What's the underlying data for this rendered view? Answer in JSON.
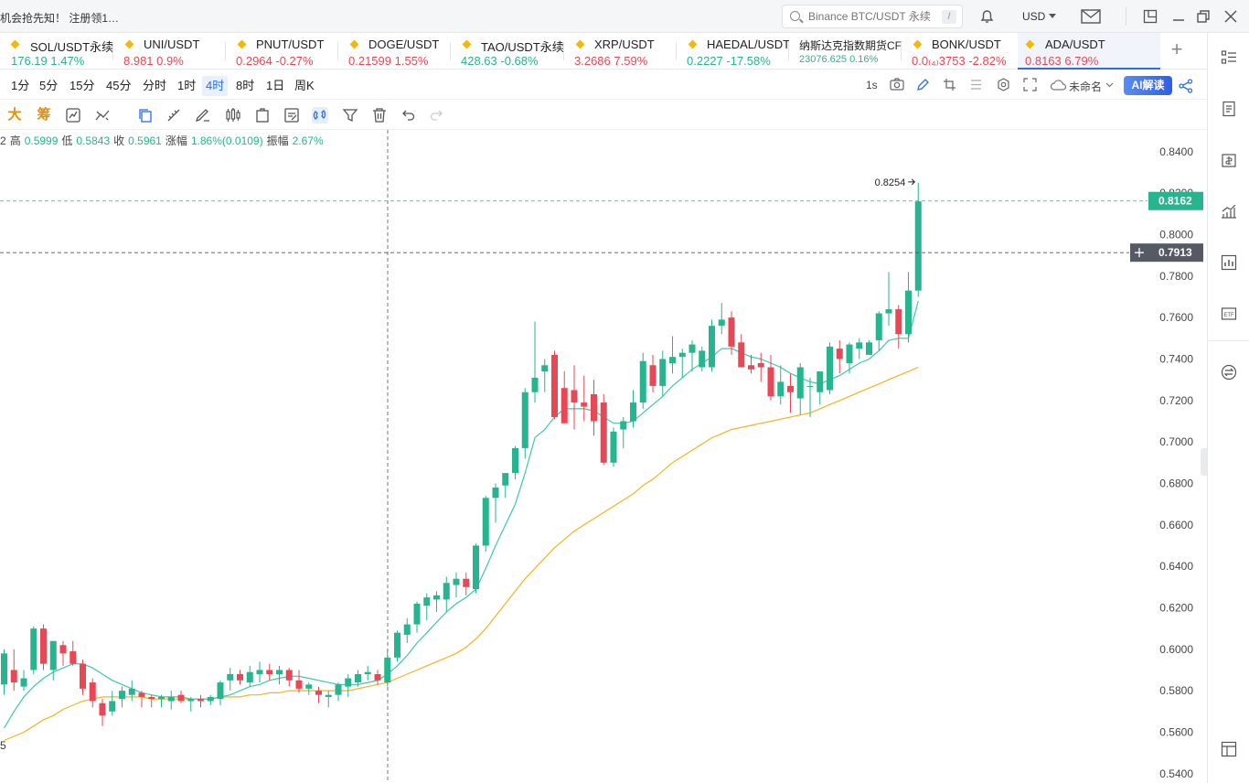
{
  "topbar": {
    "promo": "机会抢先知！ 注册领1…",
    "search_placeholder": "Binance BTC/USDT 永续",
    "search_shortcut": "/",
    "currency": "USD"
  },
  "tickers": [
    {
      "name": "SOL/USDT永续",
      "price": "176.19",
      "change": "1.47%",
      "trend": "up"
    },
    {
      "name": "UNI/USDT",
      "price": "8.981",
      "change": "0.9%",
      "trend": "down"
    },
    {
      "name": "PNUT/USDT",
      "price": "0.2964",
      "change": "-0.27%",
      "trend": "down"
    },
    {
      "name": "DOGE/USDT",
      "price": "0.21599",
      "change": "1.55%",
      "trend": "down"
    },
    {
      "name": "TAO/USDT永续",
      "price": "428.63",
      "change": "-0.68%",
      "trend": "up"
    },
    {
      "name": "XRP/USDT",
      "price": "3.2686",
      "change": "7.59%",
      "trend": "down"
    },
    {
      "name": "HAEDAL/USDT",
      "price": "0.2227",
      "change": "-17.58%",
      "trend": "up"
    },
    {
      "name": "纳斯达克指数期货CFD",
      "price": "23076.625",
      "change": "0.16%",
      "trend": "up"
    },
    {
      "name": "BONK/USDT",
      "price": "0.0₍₄₎3753",
      "change": "-2.82%",
      "trend": "down"
    },
    {
      "name": "ADA/USDT",
      "price": "0.8163",
      "change": "6.79%",
      "trend": "down"
    }
  ],
  "intervals": [
    "1分",
    "5分",
    "15分",
    "45分",
    "分时",
    "1时",
    "4时",
    "8时",
    "1日",
    "周K"
  ],
  "selected_interval": "4时",
  "interval_right": {
    "refresh": "1s",
    "layout_name": "未命名",
    "ai_label": "AI解读"
  },
  "tools": {
    "big": "大",
    "chip": "筹"
  },
  "ohlc": {
    "open_suffix": "2",
    "high_label": "高",
    "high": "0.5999",
    "low_label": "低",
    "low": "0.5843",
    "close_label": "收",
    "close": "0.5961",
    "change_label": "涨幅",
    "change": "1.86%(0.0109)",
    "amp_label": "振幅",
    "amp": "2.67%"
  },
  "bottom_left_label": "5",
  "chart_data": {
    "type": "candlestick",
    "y_ticks": [
      "0.8400",
      "0.8200",
      "0.8000",
      "0.7800",
      "0.7600",
      "0.7400",
      "0.7200",
      "0.7000",
      "0.6800",
      "0.6600",
      "0.6400",
      "0.6200",
      "0.6000",
      "0.5800",
      "0.5600",
      "0.5400"
    ],
    "ylim": [
      0.5355,
      0.8505
    ],
    "last_price": "0.8162",
    "crosshair_price": "0.7913",
    "high_marker": "0.8254",
    "candles": [
      [
        0.583,
        0.6,
        0.578,
        0.598
      ],
      [
        0.59,
        0.6,
        0.58,
        0.584
      ],
      [
        0.582,
        0.59,
        0.58,
        0.586
      ],
      [
        0.59,
        0.611,
        0.588,
        0.61
      ],
      [
        0.61,
        0.612,
        0.59,
        0.593
      ],
      [
        0.59,
        0.603,
        0.585,
        0.604
      ],
      [
        0.602,
        0.604,
        0.592,
        0.598
      ],
      [
        0.599,
        0.604,
        0.592,
        0.593
      ],
      [
        0.593,
        0.595,
        0.578,
        0.581
      ],
      [
        0.584,
        0.586,
        0.572,
        0.575
      ],
      [
        0.574,
        0.576,
        0.563,
        0.568
      ],
      [
        0.57,
        0.58,
        0.568,
        0.575
      ],
      [
        0.576,
        0.582,
        0.572,
        0.58
      ],
      [
        0.578,
        0.585,
        0.575,
        0.581
      ],
      [
        0.579,
        0.58,
        0.572,
        0.577
      ],
      [
        0.577,
        0.578,
        0.572,
        0.576
      ],
      [
        0.576,
        0.578,
        0.572,
        0.577
      ],
      [
        0.575,
        0.58,
        0.571,
        0.577
      ],
      [
        0.578,
        0.58,
        0.574,
        0.575
      ],
      [
        0.575,
        0.577,
        0.57,
        0.576
      ],
      [
        0.576,
        0.578,
        0.572,
        0.575
      ],
      [
        0.575,
        0.578,
        0.573,
        0.577
      ],
      [
        0.576,
        0.585,
        0.573,
        0.584
      ],
      [
        0.585,
        0.591,
        0.58,
        0.588
      ],
      [
        0.588,
        0.59,
        0.583,
        0.585
      ],
      [
        0.584,
        0.592,
        0.582,
        0.589
      ],
      [
        0.588,
        0.594,
        0.584,
        0.59
      ],
      [
        0.59,
        0.593,
        0.585,
        0.588
      ],
      [
        0.588,
        0.592,
        0.583,
        0.59
      ],
      [
        0.59,
        0.591,
        0.582,
        0.585
      ],
      [
        0.585,
        0.59,
        0.579,
        0.581
      ],
      [
        0.581,
        0.584,
        0.578,
        0.583
      ],
      [
        0.58,
        0.582,
        0.574,
        0.578
      ],
      [
        0.577,
        0.58,
        0.572,
        0.578
      ],
      [
        0.578,
        0.584,
        0.575,
        0.583
      ],
      [
        0.582,
        0.588,
        0.577,
        0.586
      ],
      [
        0.584,
        0.59,
        0.582,
        0.588
      ],
      [
        0.588,
        0.592,
        0.585,
        0.589
      ],
      [
        0.588,
        0.59,
        0.583,
        0.585
      ],
      [
        0.584,
        0.6,
        0.582,
        0.596
      ],
      [
        0.596,
        0.609,
        0.594,
        0.608
      ],
      [
        0.607,
        0.615,
        0.603,
        0.612
      ],
      [
        0.612,
        0.623,
        0.608,
        0.622
      ],
      [
        0.621,
        0.627,
        0.614,
        0.625
      ],
      [
        0.624,
        0.628,
        0.618,
        0.626
      ],
      [
        0.624,
        0.635,
        0.618,
        0.632
      ],
      [
        0.631,
        0.637,
        0.625,
        0.634
      ],
      [
        0.634,
        0.637,
        0.626,
        0.63
      ],
      [
        0.629,
        0.651,
        0.627,
        0.65
      ],
      [
        0.65,
        0.674,
        0.647,
        0.673
      ],
      [
        0.673,
        0.68,
        0.661,
        0.678
      ],
      [
        0.679,
        0.685,
        0.673,
        0.685
      ],
      [
        0.685,
        0.698,
        0.682,
        0.697
      ],
      [
        0.697,
        0.726,
        0.692,
        0.724
      ],
      [
        0.724,
        0.758,
        0.719,
        0.731
      ],
      [
        0.734,
        0.74,
        0.724,
        0.737
      ],
      [
        0.742,
        0.744,
        0.711,
        0.712
      ],
      [
        0.726,
        0.734,
        0.711,
        0.709
      ],
      [
        0.725,
        0.737,
        0.706,
        0.719
      ],
      [
        0.719,
        0.732,
        0.71,
        0.717
      ],
      [
        0.723,
        0.73,
        0.703,
        0.71
      ],
      [
        0.719,
        0.723,
        0.689,
        0.69
      ],
      [
        0.69,
        0.707,
        0.688,
        0.705
      ],
      [
        0.706,
        0.712,
        0.697,
        0.71
      ],
      [
        0.71,
        0.725,
        0.707,
        0.719
      ],
      [
        0.719,
        0.743,
        0.716,
        0.739
      ],
      [
        0.737,
        0.742,
        0.724,
        0.727
      ],
      [
        0.727,
        0.744,
        0.722,
        0.74
      ],
      [
        0.738,
        0.751,
        0.733,
        0.741
      ],
      [
        0.741,
        0.745,
        0.731,
        0.743
      ],
      [
        0.743,
        0.749,
        0.734,
        0.747
      ],
      [
        0.736,
        0.746,
        0.734,
        0.744
      ],
      [
        0.736,
        0.759,
        0.734,
        0.756
      ],
      [
        0.756,
        0.767,
        0.752,
        0.759
      ],
      [
        0.76,
        0.763,
        0.742,
        0.746
      ],
      [
        0.748,
        0.752,
        0.736,
        0.736
      ],
      [
        0.737,
        0.742,
        0.733,
        0.735
      ],
      [
        0.738,
        0.743,
        0.729,
        0.736
      ],
      [
        0.736,
        0.742,
        0.72,
        0.722
      ],
      [
        0.722,
        0.737,
        0.718,
        0.729
      ],
      [
        0.727,
        0.733,
        0.714,
        0.724
      ],
      [
        0.721,
        0.738,
        0.713,
        0.736
      ],
      [
        0.727,
        0.731,
        0.712,
        0.727
      ],
      [
        0.724,
        0.733,
        0.718,
        0.734
      ],
      [
        0.725,
        0.748,
        0.723,
        0.746
      ],
      [
        0.745,
        0.749,
        0.733,
        0.74
      ],
      [
        0.738,
        0.748,
        0.733,
        0.747
      ],
      [
        0.745,
        0.75,
        0.74,
        0.748
      ],
      [
        0.742,
        0.749,
        0.742,
        0.748
      ],
      [
        0.749,
        0.763,
        0.744,
        0.762
      ],
      [
        0.762,
        0.782,
        0.756,
        0.764
      ],
      [
        0.764,
        0.766,
        0.745,
        0.752
      ],
      [
        0.752,
        0.782,
        0.748,
        0.773
      ],
      [
        0.773,
        0.825,
        0.77,
        0.816
      ]
    ],
    "ma_fast": [
      0.562,
      0.57,
      0.577,
      0.582,
      0.586,
      0.589,
      0.591,
      0.593,
      0.593,
      0.591,
      0.588,
      0.585,
      0.583,
      0.581,
      0.579,
      0.578,
      0.577,
      0.577,
      0.577,
      0.576,
      0.576,
      0.576,
      0.577,
      0.578,
      0.58,
      0.582,
      0.583,
      0.585,
      0.586,
      0.587,
      0.587,
      0.586,
      0.585,
      0.584,
      0.583,
      0.583,
      0.583,
      0.584,
      0.585,
      0.588,
      0.592,
      0.597,
      0.603,
      0.608,
      0.613,
      0.618,
      0.622,
      0.625,
      0.629,
      0.639,
      0.65,
      0.66,
      0.67,
      0.685,
      0.702,
      0.706,
      0.712,
      0.716,
      0.716,
      0.716,
      0.715,
      0.712,
      0.709,
      0.709,
      0.71,
      0.714,
      0.718,
      0.722,
      0.727,
      0.731,
      0.735,
      0.738,
      0.741,
      0.745,
      0.745,
      0.743,
      0.741,
      0.74,
      0.738,
      0.736,
      0.733,
      0.731,
      0.729,
      0.728,
      0.73,
      0.732,
      0.735,
      0.738,
      0.74,
      0.744,
      0.749,
      0.75,
      0.75,
      0.768
    ],
    "ma_slow": [
      0.556,
      0.558,
      0.56,
      0.563,
      0.566,
      0.568,
      0.571,
      0.573,
      0.575,
      0.576,
      0.577,
      0.577,
      0.577,
      0.577,
      0.577,
      0.576,
      0.576,
      0.576,
      0.576,
      0.576,
      0.576,
      0.576,
      0.577,
      0.577,
      0.577,
      0.578,
      0.578,
      0.579,
      0.579,
      0.58,
      0.58,
      0.58,
      0.58,
      0.58,
      0.58,
      0.58,
      0.581,
      0.582,
      0.583,
      0.584,
      0.586,
      0.588,
      0.59,
      0.592,
      0.594,
      0.596,
      0.598,
      0.601,
      0.605,
      0.61,
      0.616,
      0.622,
      0.628,
      0.634,
      0.639,
      0.644,
      0.649,
      0.653,
      0.657,
      0.66,
      0.663,
      0.666,
      0.669,
      0.672,
      0.675,
      0.679,
      0.682,
      0.686,
      0.69,
      0.693,
      0.696,
      0.699,
      0.702,
      0.704,
      0.706,
      0.707,
      0.708,
      0.709,
      0.71,
      0.711,
      0.712,
      0.713,
      0.714,
      0.716,
      0.718,
      0.72,
      0.722,
      0.724,
      0.726,
      0.728,
      0.73,
      0.732,
      0.734,
      0.736
    ]
  },
  "colors": {
    "up": "#26b58e",
    "down": "#e84855",
    "ma_fast": "#3ec8a8",
    "ma_slow": "#f5b31f",
    "accent": "#2b6fe0"
  }
}
